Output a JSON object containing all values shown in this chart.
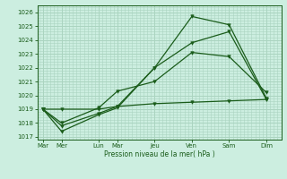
{
  "background_color": "#cceee0",
  "grid_color": "#aad4c0",
  "line_color": "#1a5c1a",
  "xlabel": "Pression niveau de la mer( hPa )",
  "ylim": [
    1016.8,
    1026.5
  ],
  "yticks": [
    1017,
    1018,
    1019,
    1020,
    1021,
    1022,
    1023,
    1024,
    1025,
    1026
  ],
  "x_labels": [
    "Mar",
    "Mer",
    "Lun",
    "Mar",
    "Jeu",
    "Ven",
    "Sam",
    "Dim"
  ],
  "x_positions": [
    0,
    1,
    3,
    4,
    6,
    8,
    10,
    12
  ],
  "xlim": [
    -0.3,
    12.8
  ],
  "series": [
    [
      1019.0,
      1017.8,
      1018.7,
      1019.2,
      1022.0,
      1023.8,
      1024.6,
      1019.7
    ],
    [
      1019.0,
      1017.4,
      1018.6,
      1019.1,
      1022.0,
      1025.7,
      1025.1,
      1019.8
    ],
    [
      1019.0,
      1018.0,
      1019.1,
      1020.3,
      1021.0,
      1023.1,
      1022.8,
      1020.2
    ],
    [
      1019.0,
      1019.0,
      1019.0,
      1019.2,
      1019.4,
      1019.5,
      1019.6,
      1019.7
    ]
  ],
  "marker": "v",
  "markersize": 2.5,
  "linewidth": 0.9
}
